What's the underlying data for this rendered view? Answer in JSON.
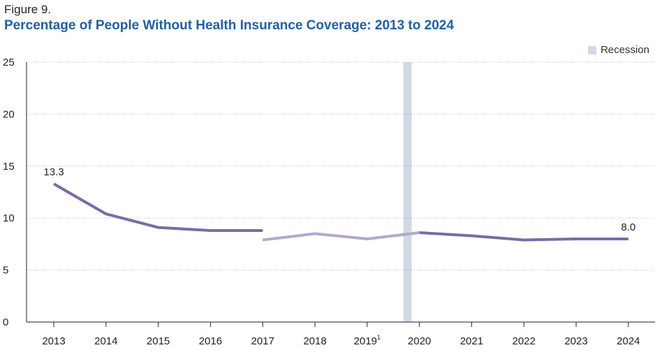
{
  "figure_label": "Figure 9.",
  "title": "Percentage of People Without Health Insurance Coverage: 2013 to 2024",
  "legend": {
    "recession_label": "Recession"
  },
  "colors": {
    "title": "#1f5fa8",
    "series_dark": "#7b6aa6",
    "series_light": "#b3a8cb",
    "recession": "#d3d8e6",
    "grid": "#bbbbbb"
  },
  "chart_data": {
    "type": "line",
    "categories": [
      "2013",
      "2014",
      "2015",
      "2016",
      "2017",
      "2018",
      "2019",
      "2020",
      "2021",
      "2022",
      "2023",
      "2024"
    ],
    "footnote_marks": {
      "2019": "1"
    },
    "ylim": [
      0,
      25
    ],
    "yticks": [
      0,
      5,
      10,
      15,
      20,
      25
    ],
    "grid": true,
    "legend_placement": "top-right",
    "recession": {
      "label": "Recession",
      "category": "2020"
    },
    "segments": [
      {
        "x": [
          "2013",
          "2014",
          "2015",
          "2016",
          "2017"
        ],
        "values": [
          13.3,
          10.4,
          9.1,
          8.8,
          8.8
        ],
        "style": "dark"
      },
      {
        "x": [
          "2017",
          "2018",
          "2019",
          "2020"
        ],
        "values": [
          7.9,
          8.5,
          8.0,
          8.6
        ],
        "style": "light"
      },
      {
        "x": [
          "2020",
          "2021",
          "2022",
          "2023",
          "2024"
        ],
        "values": [
          8.6,
          8.3,
          7.9,
          8.0,
          8.0
        ],
        "style": "dark"
      }
    ],
    "data_labels": [
      {
        "x": "2013",
        "value": 13.3,
        "text": "13.3"
      },
      {
        "x": "2024",
        "value": 8.0,
        "text": "8.0"
      }
    ]
  }
}
